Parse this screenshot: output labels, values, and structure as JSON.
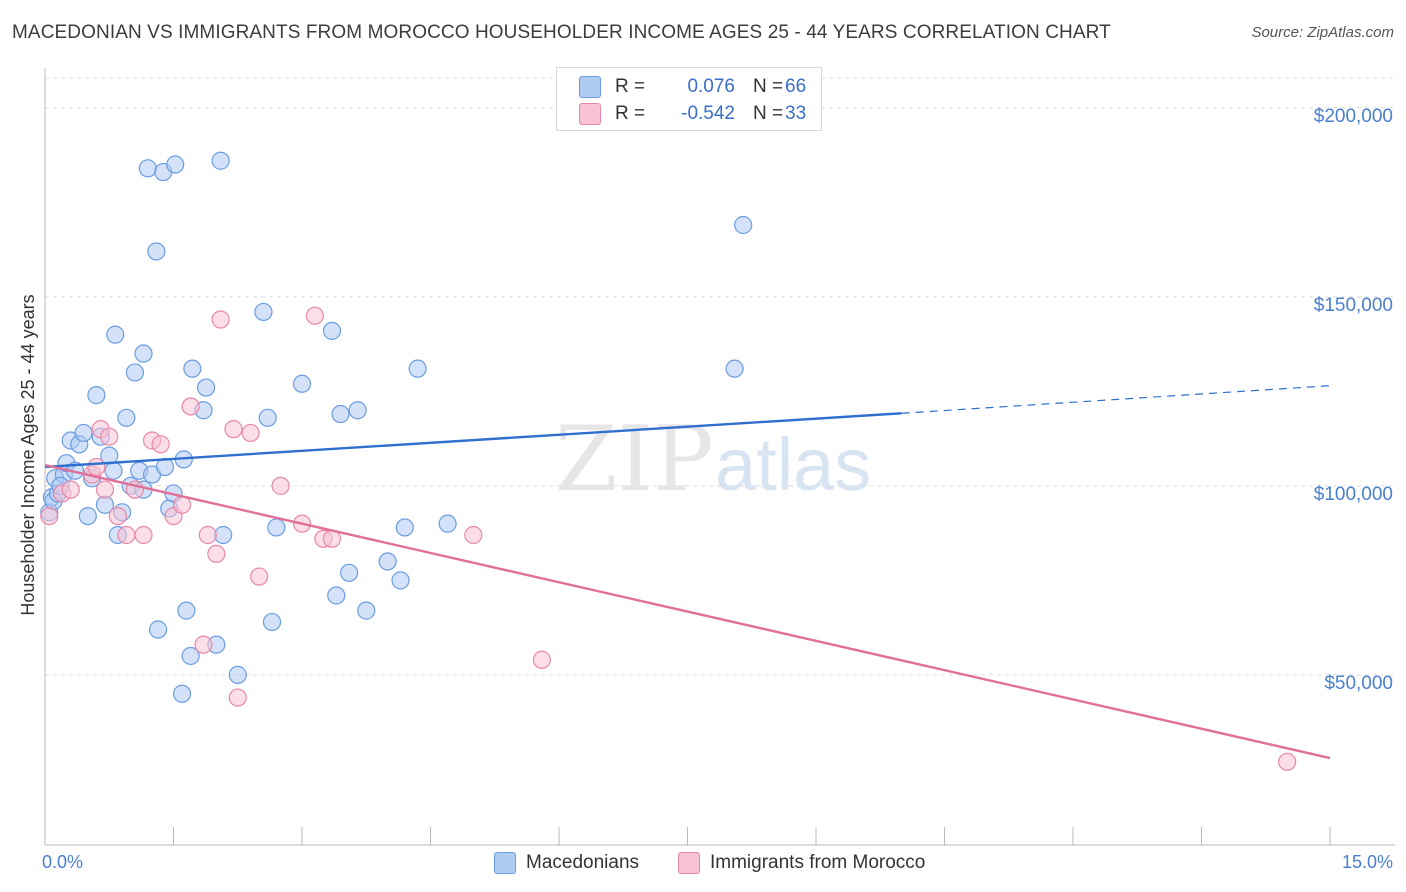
{
  "title": "MACEDONIAN VS IMMIGRANTS FROM MOROCCO HOUSEHOLDER INCOME AGES 25 - 44 YEARS CORRELATION CHART",
  "source": "Source: ZipAtlas.com",
  "watermark": {
    "zip": "ZIP",
    "atlas": "atlas"
  },
  "legend": {
    "macedonians": {
      "r_label": "R =",
      "r_value": "0.076",
      "n_label": "N =",
      "n_value": "66"
    },
    "morocco": {
      "r_label": "R =",
      "r_value": "-0.542",
      "n_label": "N =",
      "n_value": "33"
    }
  },
  "bottom_legend": {
    "macedonians": "Macedonians",
    "morocco": "Immigrants from Morocco"
  },
  "colors": {
    "blue_fill": "#aecbf2",
    "blue_stroke": "#6b9de0",
    "blue_line": "#2f6fce",
    "pink_fill": "#f8c3d4",
    "pink_stroke": "#e888a8",
    "pink_line": "#e0709a",
    "tick_text": "#4a7fcf"
  },
  "chart_data": {
    "type": "scatter",
    "title": "MACEDONIAN VS IMMIGRANTS FROM MOROCCO HOUSEHOLDER INCOME AGES 25 - 44 YEARS CORRELATION CHART",
    "xlabel": "",
    "ylabel": "Householder Income Ages 25 - 44 years",
    "xlim": [
      0,
      15
    ],
    "ylim": [
      5000,
      210000
    ],
    "x_tick_labels": {
      "min": "0.0%",
      "max": "15.0%"
    },
    "y_ticks": [
      {
        "value": 50000,
        "label": "$50,000"
      },
      {
        "value": 100000,
        "label": "$100,000"
      },
      {
        "value": 150000,
        "label": "$150,000"
      },
      {
        "value": 200000,
        "label": "$200,000"
      }
    ],
    "series": [
      {
        "name": "Macedonians",
        "trend": {
          "x0": 0,
          "y0": 105000,
          "x1": 10.0,
          "y1": 119200,
          "dash_to_x": 15,
          "dash_to_y": 126500
        },
        "points": [
          [
            0.05,
            93000
          ],
          [
            0.08,
            97000
          ],
          [
            0.1,
            96000
          ],
          [
            0.12,
            102000
          ],
          [
            0.15,
            98000
          ],
          [
            0.22,
            103000
          ],
          [
            0.25,
            106000
          ],
          [
            0.3,
            112000
          ],
          [
            0.35,
            104000
          ],
          [
            0.4,
            111000
          ],
          [
            0.45,
            114000
          ],
          [
            0.5,
            92000
          ],
          [
            0.55,
            102000
          ],
          [
            0.6,
            124000
          ],
          [
            0.65,
            113000
          ],
          [
            0.75,
            108000
          ],
          [
            0.8,
            104000
          ],
          [
            0.82,
            140000
          ],
          [
            0.85,
            87000
          ],
          [
            0.9,
            93000
          ],
          [
            0.95,
            118000
          ],
          [
            1.0,
            100000
          ],
          [
            1.05,
            130000
          ],
          [
            1.1,
            104000
          ],
          [
            1.15,
            99000
          ],
          [
            1.15,
            135000
          ],
          [
            1.2,
            184000
          ],
          [
            1.25,
            103000
          ],
          [
            1.3,
            162000
          ],
          [
            1.32,
            62000
          ],
          [
            1.38,
            183000
          ],
          [
            1.4,
            105000
          ],
          [
            1.45,
            94000
          ],
          [
            1.5,
            98000
          ],
          [
            1.52,
            185000
          ],
          [
            1.6,
            45000
          ],
          [
            1.62,
            107000
          ],
          [
            1.65,
            67000
          ],
          [
            1.7,
            55000
          ],
          [
            1.72,
            131000
          ],
          [
            1.85,
            120000
          ],
          [
            1.88,
            126000
          ],
          [
            2.0,
            58000
          ],
          [
            2.05,
            186000
          ],
          [
            2.08,
            87000
          ],
          [
            2.25,
            50000
          ],
          [
            2.55,
            146000
          ],
          [
            2.6,
            118000
          ],
          [
            2.65,
            64000
          ],
          [
            2.7,
            89000
          ],
          [
            3.0,
            127000
          ],
          [
            3.35,
            141000
          ],
          [
            3.4,
            71000
          ],
          [
            3.45,
            119000
          ],
          [
            3.55,
            77000
          ],
          [
            3.65,
            120000
          ],
          [
            3.75,
            67000
          ],
          [
            4.0,
            80000
          ],
          [
            4.15,
            75000
          ],
          [
            4.2,
            89000
          ],
          [
            4.35,
            131000
          ],
          [
            4.7,
            90000
          ],
          [
            8.05,
            131000
          ],
          [
            8.15,
            169000
          ],
          [
            0.18,
            100000
          ],
          [
            0.7,
            95000
          ]
        ]
      },
      {
        "name": "Immigrants from Morocco",
        "trend": {
          "x0": 0,
          "y0": 105500,
          "x1": 15,
          "y1": 28000
        },
        "points": [
          [
            0.05,
            92000
          ],
          [
            0.2,
            98000
          ],
          [
            0.3,
            99000
          ],
          [
            0.55,
            103000
          ],
          [
            0.6,
            105000
          ],
          [
            0.65,
            115000
          ],
          [
            0.7,
            99000
          ],
          [
            0.75,
            113000
          ],
          [
            0.85,
            92000
          ],
          [
            0.95,
            87000
          ],
          [
            1.05,
            99000
          ],
          [
            1.15,
            87000
          ],
          [
            1.25,
            112000
          ],
          [
            1.35,
            111000
          ],
          [
            1.5,
            92000
          ],
          [
            1.6,
            95000
          ],
          [
            1.7,
            121000
          ],
          [
            1.85,
            58000
          ],
          [
            1.9,
            87000
          ],
          [
            2.0,
            82000
          ],
          [
            2.05,
            144000
          ],
          [
            2.2,
            115000
          ],
          [
            2.25,
            44000
          ],
          [
            2.4,
            114000
          ],
          [
            2.5,
            76000
          ],
          [
            2.75,
            100000
          ],
          [
            3.0,
            90000
          ],
          [
            3.15,
            145000
          ],
          [
            3.25,
            86000
          ],
          [
            3.35,
            86000
          ],
          [
            5.0,
            87000
          ],
          [
            5.8,
            54000
          ],
          [
            14.5,
            27000
          ]
        ]
      }
    ]
  }
}
